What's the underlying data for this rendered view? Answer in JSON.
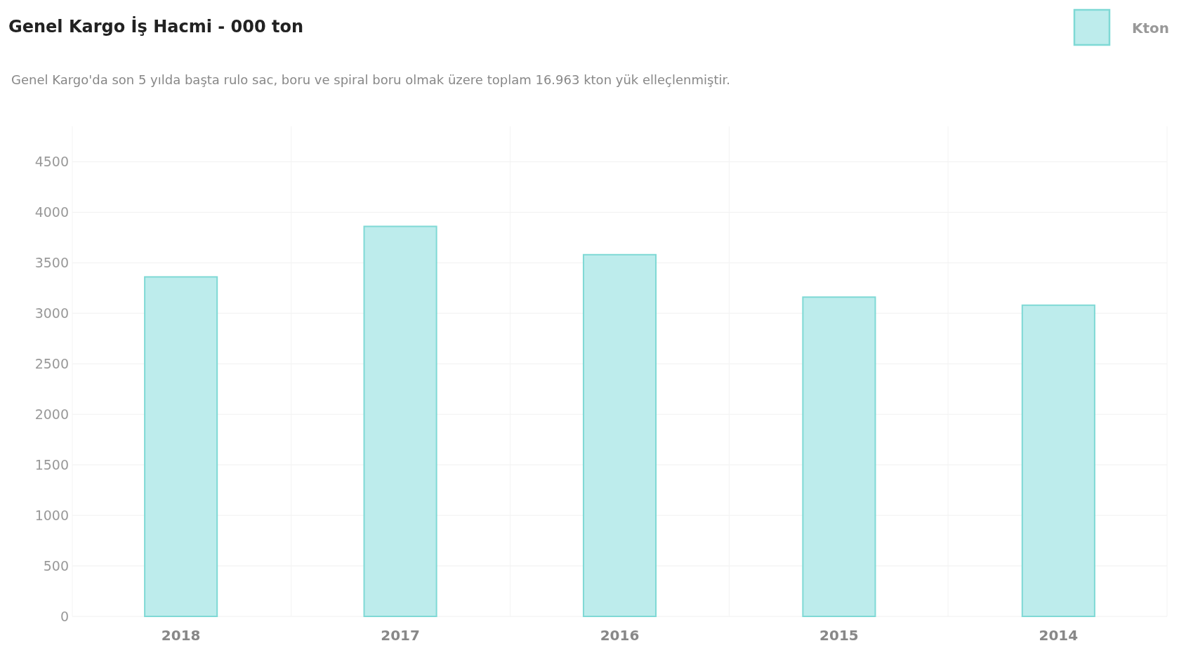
{
  "chart_data": {
    "type": "bar",
    "title": "Genel Kargo İş Hacmi - 000 ton",
    "subtitle": "Genel Kargo'da son 5 yılda başta rulo sac, boru ve spiral boru olmak üzere toplam 16.963 kton yük elleçlenmiştir.",
    "categories": [
      "2018",
      "2017",
      "2016",
      "2015",
      "2014"
    ],
    "series": [
      {
        "name": "Kton",
        "color": "#bdecec",
        "values": [
          3360,
          3860,
          3580,
          3160,
          3080
        ]
      }
    ],
    "ylim": [
      0,
      4850
    ],
    "yticks": [
      0,
      500,
      1000,
      1500,
      2000,
      2500,
      3000,
      3500,
      4000,
      4500
    ],
    "grid": true,
    "legend": "top right"
  }
}
